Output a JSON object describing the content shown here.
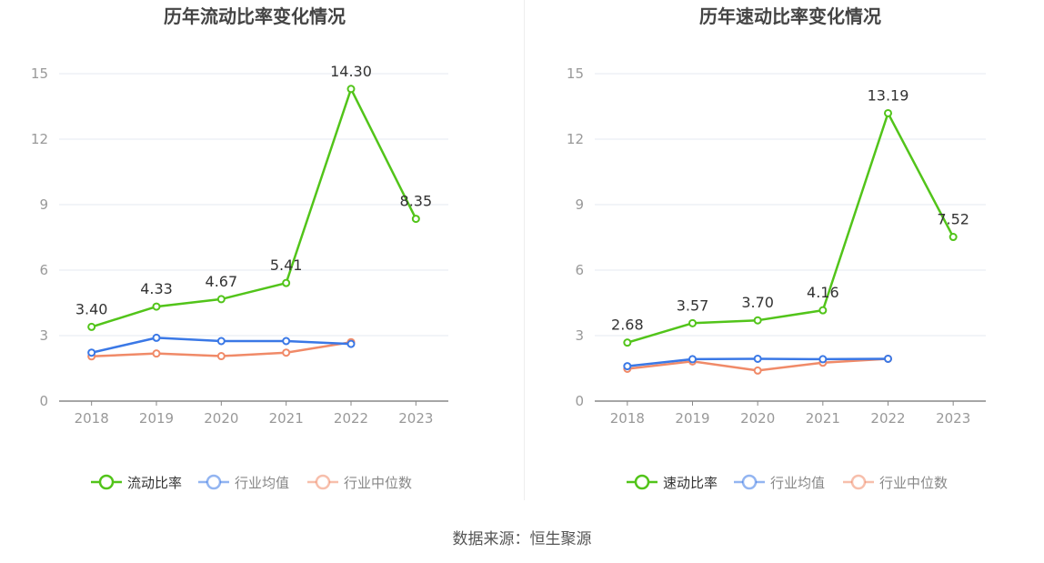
{
  "colors": {
    "primary": "#52c41a",
    "average": "#3a78e6",
    "median": "#f08a68",
    "grid": "#e6e9f2",
    "axis": "#888888",
    "tick_text": "#999999",
    "title_text": "#444444",
    "label_text": "#333333"
  },
  "chart_data": [
    {
      "type": "line",
      "title": "历年流动比率变化情况",
      "categories": [
        "2018",
        "2019",
        "2020",
        "2021",
        "2022",
        "2023"
      ],
      "ylim": [
        0,
        15
      ],
      "yticks": [
        0,
        3,
        6,
        9,
        12,
        15
      ],
      "grid": true,
      "legend_position": "bottom",
      "series": [
        {
          "name": "流动比率",
          "values": [
            3.4,
            4.33,
            4.67,
            5.41,
            14.3,
            8.35
          ],
          "labels": [
            "3.40",
            "4.33",
            "4.67",
            "5.41",
            "14.30",
            "8.35"
          ]
        },
        {
          "name": "行业均值",
          "values": [
            2.22,
            2.9,
            2.75,
            2.75,
            2.62,
            null
          ]
        },
        {
          "name": "行业中位数",
          "values": [
            2.05,
            2.18,
            2.06,
            2.22,
            2.7,
            null
          ]
        }
      ]
    },
    {
      "type": "line",
      "title": "历年速动比率变化情况",
      "categories": [
        "2018",
        "2019",
        "2020",
        "2021",
        "2022",
        "2023"
      ],
      "ylim": [
        0,
        15
      ],
      "yticks": [
        0,
        3,
        6,
        9,
        12,
        15
      ],
      "grid": true,
      "legend_position": "bottom",
      "series": [
        {
          "name": "速动比率",
          "values": [
            2.68,
            3.57,
            3.7,
            4.16,
            13.19,
            7.52
          ],
          "labels": [
            "2.68",
            "3.57",
            "3.70",
            "4.16",
            "13.19",
            "7.52"
          ]
        },
        {
          "name": "行业均值",
          "values": [
            1.6,
            1.92,
            1.94,
            1.92,
            1.94,
            null
          ]
        },
        {
          "name": "行业中位数",
          "values": [
            1.48,
            1.82,
            1.4,
            1.76,
            1.94,
            null
          ]
        }
      ]
    }
  ],
  "source": "数据来源：恒生聚源"
}
